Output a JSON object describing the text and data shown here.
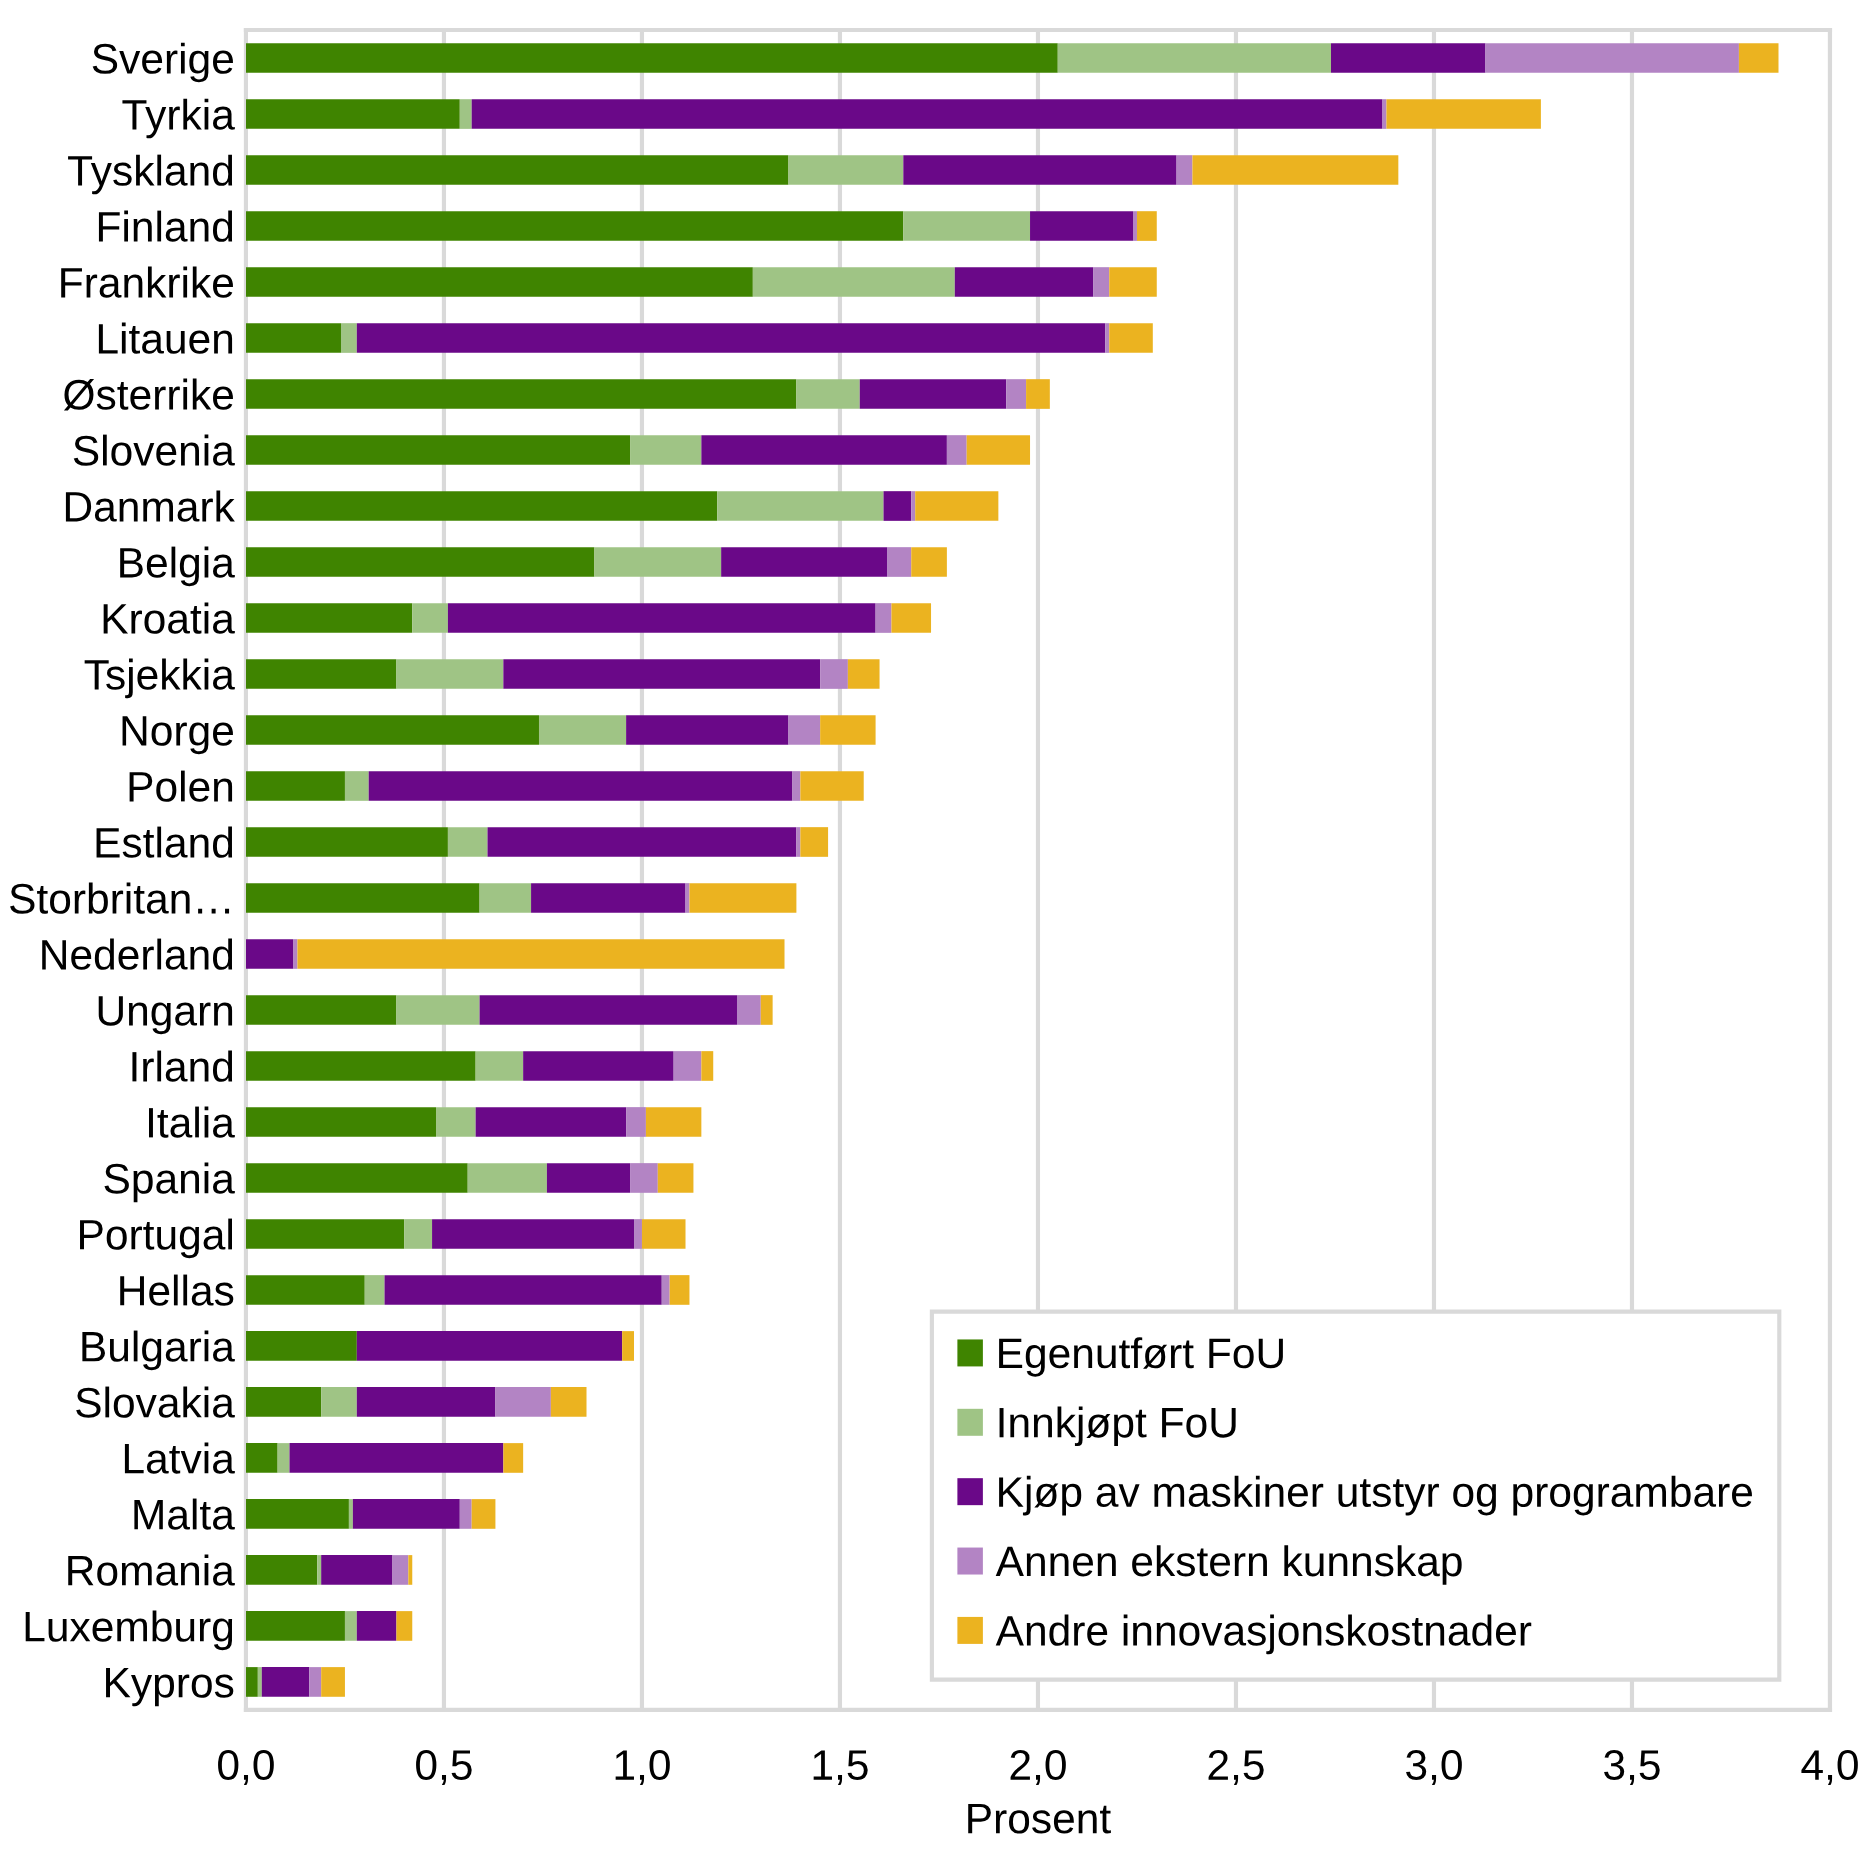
{
  "chart_data": {
    "type": "bar",
    "orientation": "horizontal",
    "stacked": true,
    "categories": [
      "Sverige",
      "Tyrkia",
      "Tyskland",
      "Finland",
      "Frankrike",
      "Litauen",
      "Østerrike",
      "Slovenia",
      "Danmark",
      "Belgia",
      "Kroatia",
      "Tsjekkia",
      "Norge",
      "Polen",
      "Estland",
      "Storbritan…",
      "Nederland",
      "Ungarn",
      "Irland",
      "Italia",
      "Spania",
      "Portugal",
      "Hellas",
      "Bulgaria",
      "Slovakia",
      "Latvia",
      "Malta",
      "Romania",
      "Luxemburg",
      "Kypros"
    ],
    "series": [
      {
        "name": "Egenutført FoU",
        "color": "#3f8400",
        "values": [
          2.05,
          0.54,
          1.37,
          1.66,
          1.28,
          0.24,
          1.39,
          0.97,
          1.19,
          0.88,
          0.42,
          0.38,
          0.74,
          0.25,
          0.51,
          0.59,
          null,
          0.38,
          0.58,
          0.48,
          0.56,
          0.4,
          0.3,
          0.28,
          0.19,
          0.08,
          0.26,
          0.18,
          0.25,
          0.03
        ]
      },
      {
        "name": "Innkjøpt FoU",
        "color": "#9fc485",
        "values": [
          0.69,
          0.03,
          0.29,
          0.32,
          0.51,
          0.04,
          0.16,
          0.18,
          0.42,
          0.32,
          0.09,
          0.27,
          0.22,
          0.06,
          0.1,
          0.13,
          null,
          0.21,
          0.12,
          0.1,
          0.2,
          0.07,
          0.05,
          null,
          0.09,
          0.03,
          0.01,
          0.01,
          0.03,
          0.01
        ]
      },
      {
        "name": "Kjøp av maskiner utstyr og programbare",
        "color": "#6a0888",
        "values": [
          0.39,
          2.3,
          0.69,
          0.26,
          0.35,
          1.89,
          0.37,
          0.62,
          0.07,
          0.42,
          1.08,
          0.8,
          0.41,
          1.07,
          0.78,
          0.39,
          0.12,
          0.65,
          0.38,
          0.38,
          0.21,
          0.51,
          0.7,
          0.67,
          0.35,
          0.54,
          0.27,
          0.18,
          0.1,
          0.12
        ]
      },
      {
        "name": "Annen ekstern kunnskap",
        "color": "#b384c4",
        "values": [
          0.64,
          0.01,
          0.04,
          0.01,
          0.04,
          0.01,
          0.05,
          0.05,
          0.01,
          0.06,
          0.04,
          0.07,
          0.08,
          0.02,
          0.01,
          0.01,
          0.01,
          0.06,
          0.07,
          0.05,
          0.07,
          0.02,
          0.02,
          null,
          0.14,
          null,
          0.03,
          0.04,
          null,
          0.03
        ]
      },
      {
        "name": "Andre innovasjonskostnader",
        "color": "#ebb320",
        "values": [
          0.1,
          0.39,
          0.52,
          0.05,
          0.12,
          0.11,
          0.06,
          0.16,
          0.21,
          0.09,
          0.1,
          0.08,
          0.14,
          0.16,
          0.07,
          0.27,
          1.23,
          0.03,
          0.03,
          0.14,
          0.09,
          0.11,
          0.05,
          0.03,
          0.09,
          0.05,
          0.06,
          0.01,
          0.04,
          0.06
        ]
      }
    ],
    "xlabel": "Prosent",
    "xlim": [
      0,
      4.0
    ],
    "xticks": [
      {
        "value": 0,
        "label": "0,0"
      },
      {
        "value": 0.5,
        "label": "0,5"
      },
      {
        "value": 1.0,
        "label": "1,0"
      },
      {
        "value": 1.5,
        "label": "1,5"
      },
      {
        "value": 2.0,
        "label": "2,0"
      },
      {
        "value": 2.5,
        "label": "2,5"
      },
      {
        "value": 3.0,
        "label": "3,0"
      },
      {
        "value": 3.5,
        "label": "3,5"
      },
      {
        "value": 4.0,
        "label": "4,0"
      }
    ],
    "grid": "x",
    "legend": "bottom right"
  }
}
